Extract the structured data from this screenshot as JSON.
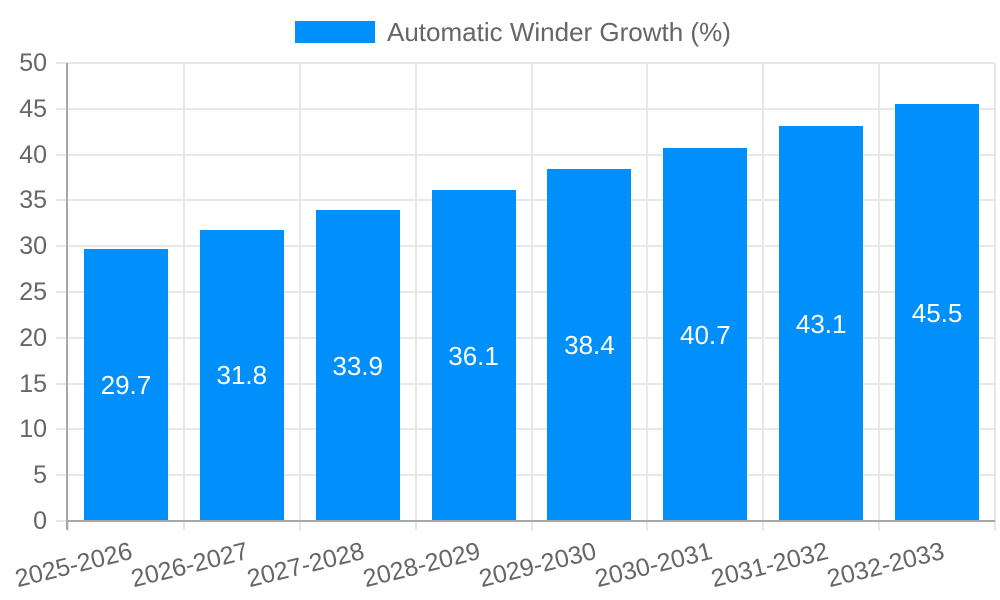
{
  "chart_data": {
    "type": "bar",
    "title": "",
    "categories": [
      "2025-2026",
      "2026-2027",
      "2027-2028",
      "2028-2029",
      "2029-2030",
      "2030-2031",
      "2031-2032",
      "2032-2033"
    ],
    "series": [
      {
        "name": "Automatic Winder Growth (%)",
        "color": "#008FFB",
        "values": [
          29.7,
          31.8,
          33.9,
          36.1,
          38.4,
          40.7,
          43.1,
          45.5
        ]
      }
    ],
    "xlabel": "",
    "ylabel": "",
    "ylim": [
      0,
      50
    ],
    "ytick_step": 5,
    "yticks": [
      0,
      5,
      10,
      15,
      20,
      25,
      30,
      35,
      40,
      45,
      50
    ],
    "grid": true,
    "legend_position": "top",
    "x_label_rotation_deg": -14,
    "value_labels": {
      "show": true,
      "position": "middle",
      "color": "#FFFFFF"
    },
    "colors": {
      "bar": "#008FFB",
      "grid": "#E8E8E8",
      "axis": "#A8A8A8",
      "tick_text": "#666666",
      "legend_text": "#666666",
      "background": "#FFFFFF"
    }
  }
}
